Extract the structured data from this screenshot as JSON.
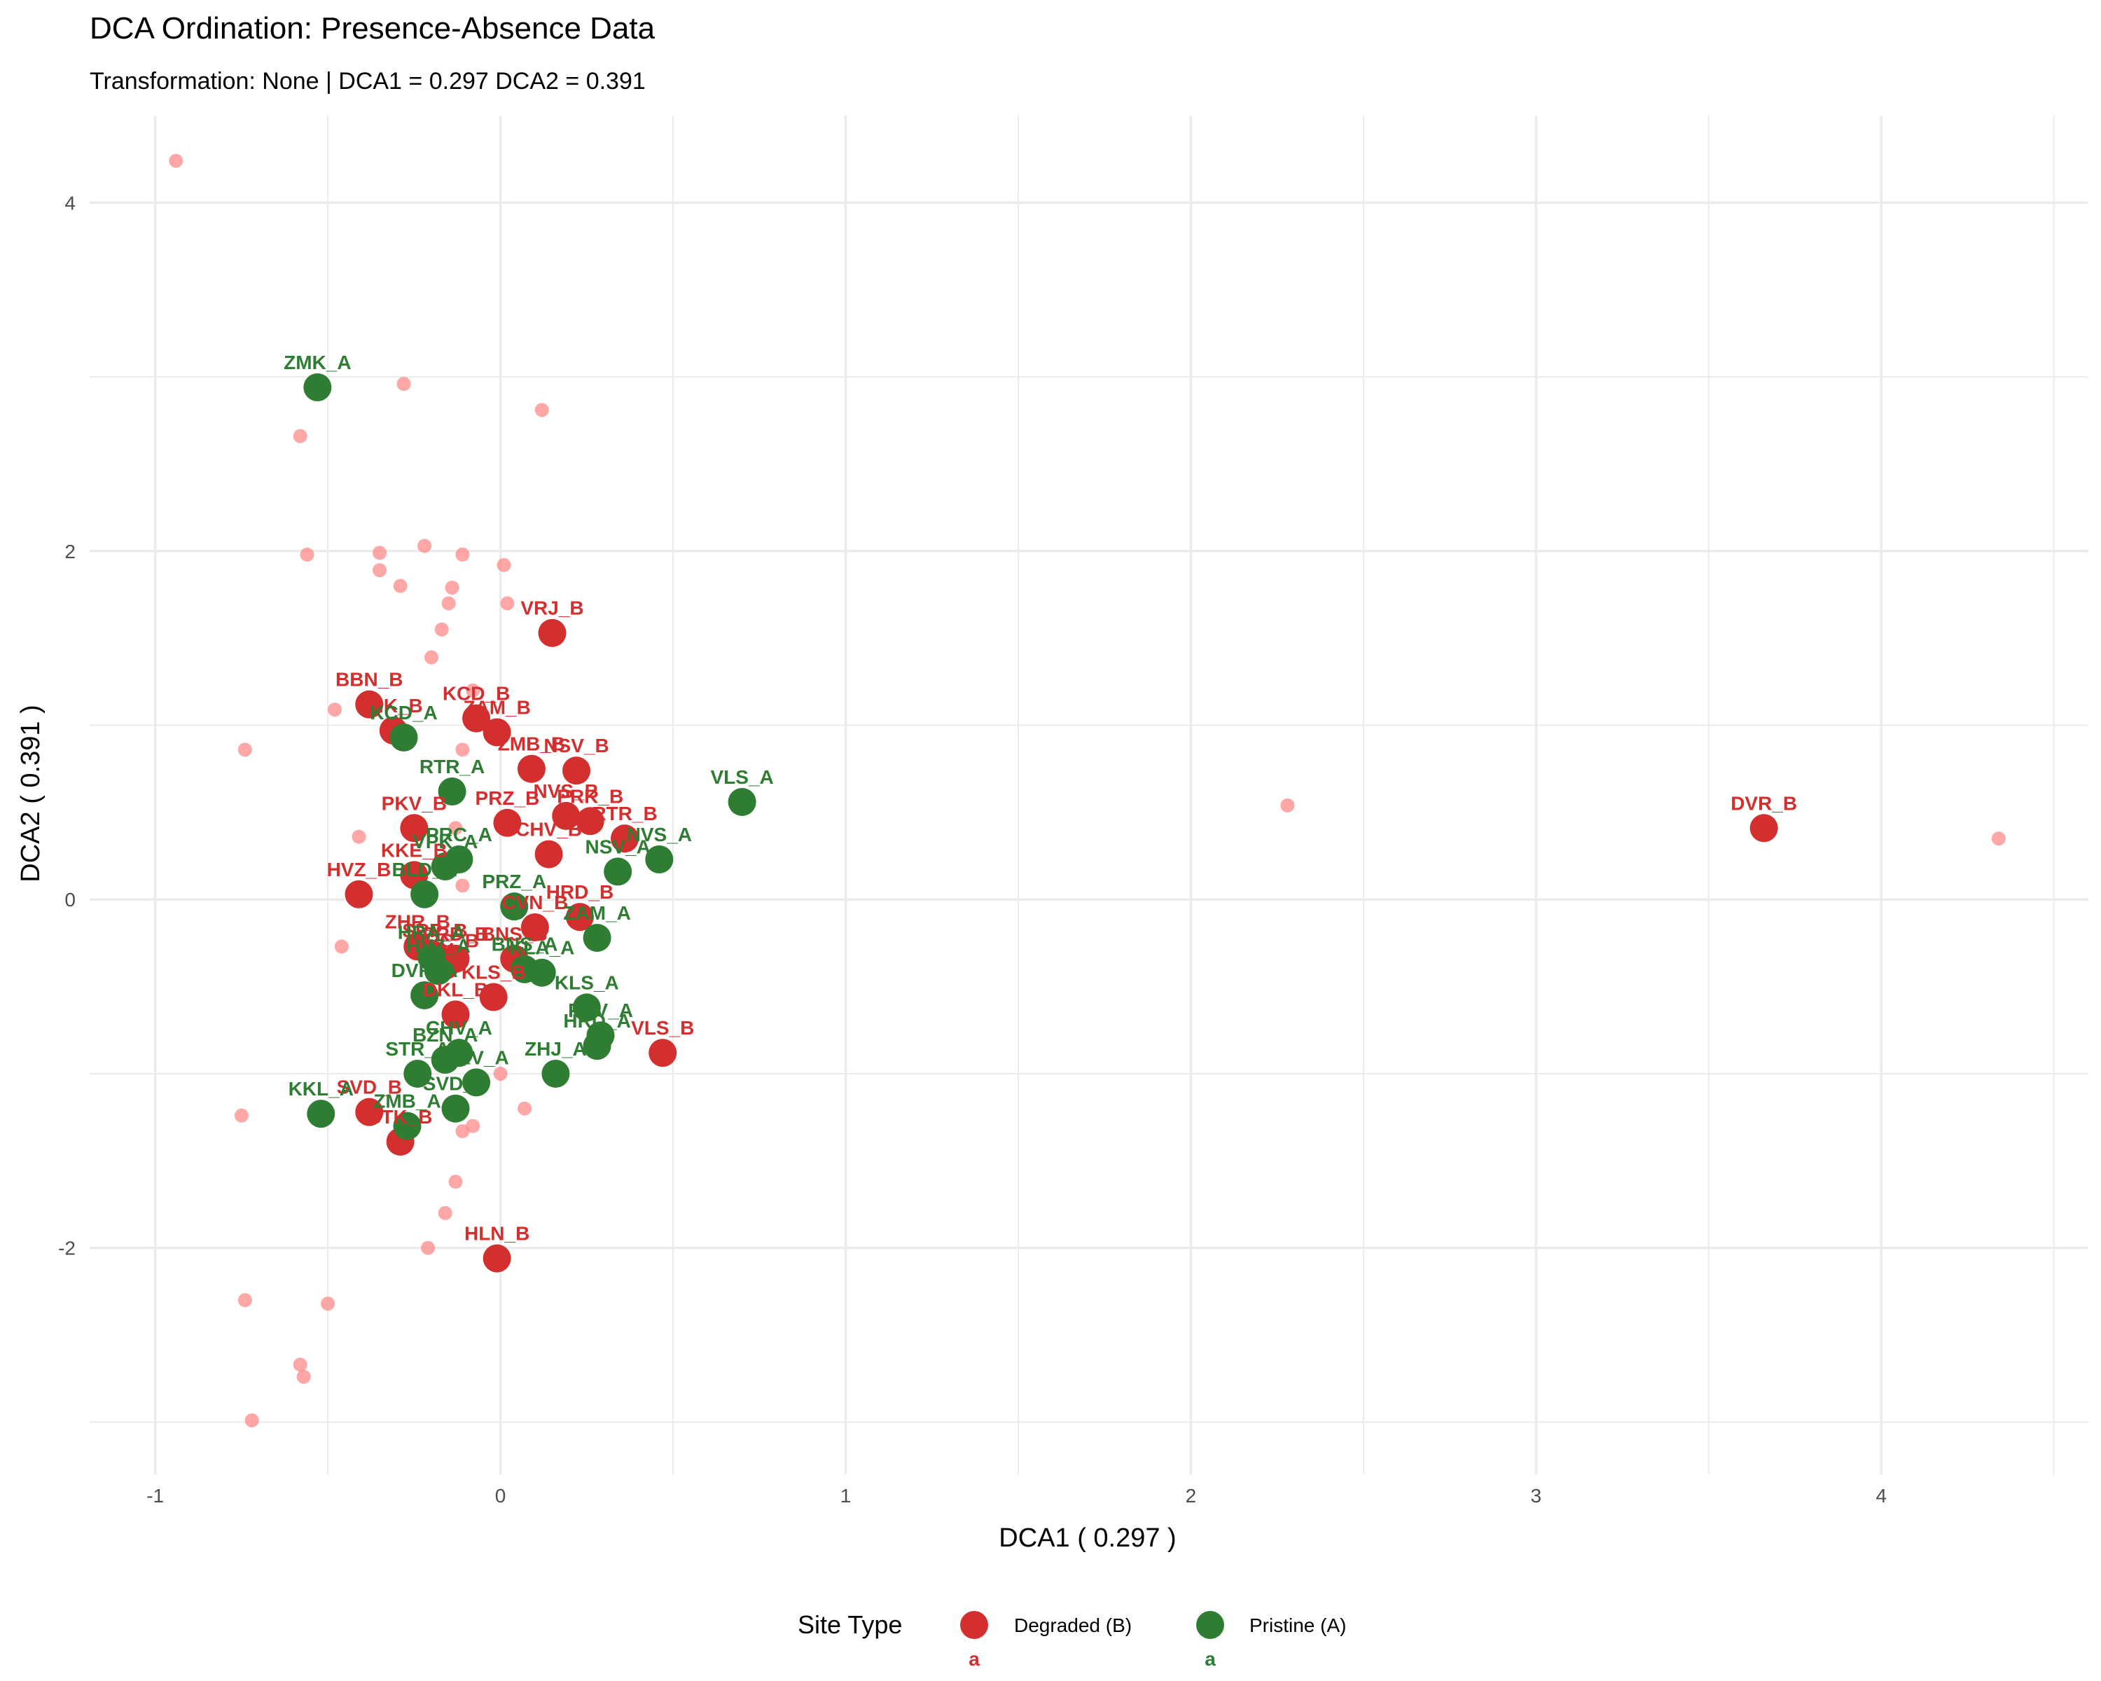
{
  "chart_data": {
    "type": "scatter",
    "title": "DCA Ordination: Presence-Absence Data",
    "subtitle": "Transformation: None | DCA1 = 0.297 DCA2 = 0.391",
    "xlabel": "DCA1 ( 0.297 )",
    "ylabel": "DCA2 ( 0.391 )",
    "xlim": [
      -1.19,
      4.6
    ],
    "ylim": [
      -3.3,
      4.5
    ],
    "x_ticks": [
      -1,
      0,
      1,
      2,
      3,
      4
    ],
    "y_ticks": [
      -2,
      0,
      2,
      4
    ],
    "x_tick_labels": [
      "-1",
      "0",
      "1",
      "2",
      "3",
      "4"
    ],
    "y_tick_labels": [
      "-2",
      "0",
      "2",
      "4"
    ],
    "grid": true,
    "legend": {
      "title": "Site Type",
      "position": "bottom",
      "entries": [
        {
          "label": "Degraded (B)",
          "color": "#d32f2f",
          "key_letter": "a"
        },
        {
          "label": "Pristine (A)",
          "color": "#2e7d32",
          "key_letter": "a"
        }
      ]
    },
    "series": [
      {
        "name": "Degraded (B)",
        "color": "#d32f2f",
        "points": [
          {
            "label": "VRJ_B",
            "x": 0.15,
            "y": 1.53
          },
          {
            "label": "BBN_B",
            "x": -0.38,
            "y": 1.12
          },
          {
            "label": "NIK_B",
            "x": -0.31,
            "y": 0.97
          },
          {
            "label": "KCD_B",
            "x": -0.07,
            "y": 1.04
          },
          {
            "label": "ZAM_B",
            "x": -0.01,
            "y": 0.96
          },
          {
            "label": "ZMB_B",
            "x": 0.09,
            "y": 0.75
          },
          {
            "label": "NSV_B",
            "x": 0.22,
            "y": 0.74
          },
          {
            "label": "PKV_B",
            "x": -0.25,
            "y": 0.41
          },
          {
            "label": "PRZ_B",
            "x": 0.02,
            "y": 0.44
          },
          {
            "label": "NVS_B",
            "x": 0.19,
            "y": 0.48
          },
          {
            "label": "PRK_B",
            "x": 0.26,
            "y": 0.45
          },
          {
            "label": "RTR_B",
            "x": 0.36,
            "y": 0.35
          },
          {
            "label": "CHV_B",
            "x": 0.14,
            "y": 0.26
          },
          {
            "label": "KKE_B",
            "x": -0.25,
            "y": 0.14
          },
          {
            "label": "HVZ_B",
            "x": -0.41,
            "y": 0.03
          },
          {
            "label": "HRD_B",
            "x": 0.23,
            "y": -0.1
          },
          {
            "label": "CVN_B",
            "x": 0.1,
            "y": -0.16
          },
          {
            "label": "ZHR_B",
            "x": -0.24,
            "y": -0.27
          },
          {
            "label": "SRP_B",
            "x": -0.19,
            "y": -0.32
          },
          {
            "label": "PRD_B",
            "x": -0.13,
            "y": -0.34
          },
          {
            "label": "HRC_B",
            "x": -0.16,
            "y": -0.38
          },
          {
            "label": "BNS_B",
            "x": 0.04,
            "y": -0.34
          },
          {
            "label": "KLS_B",
            "x": -0.02,
            "y": -0.56
          },
          {
            "label": "DKL_B",
            "x": -0.13,
            "y": -0.66
          },
          {
            "label": "VLS_B",
            "x": 0.47,
            "y": -0.88
          },
          {
            "label": "SVD_B",
            "x": -0.38,
            "y": -1.22
          },
          {
            "label": "STK_B",
            "x": -0.29,
            "y": -1.39
          },
          {
            "label": "HLN_B",
            "x": -0.01,
            "y": -2.06
          },
          {
            "label": "DVR_B",
            "x": 3.66,
            "y": 0.41
          }
        ]
      },
      {
        "name": "Pristine (A)",
        "color": "#2e7d32",
        "points": [
          {
            "label": "ZMK_A",
            "x": -0.53,
            "y": 2.94
          },
          {
            "label": "KCD_A",
            "x": -0.28,
            "y": 0.93
          },
          {
            "label": "RTR_A",
            "x": -0.14,
            "y": 0.62
          },
          {
            "label": "VLS_A",
            "x": 0.7,
            "y": 0.56
          },
          {
            "label": "PRC_A",
            "x": -0.12,
            "y": 0.23
          },
          {
            "label": "VPK_A",
            "x": -0.16,
            "y": 0.19
          },
          {
            "label": "NSV_A",
            "x": 0.34,
            "y": 0.16
          },
          {
            "label": "NVS_A",
            "x": 0.46,
            "y": 0.23
          },
          {
            "label": "BLD_A",
            "x": -0.22,
            "y": 0.03
          },
          {
            "label": "PRZ_A",
            "x": 0.04,
            "y": -0.04
          },
          {
            "label": "ZAM_A",
            "x": 0.28,
            "y": -0.22
          },
          {
            "label": "HRA_A",
            "x": -0.2,
            "y": -0.33
          },
          {
            "label": "HVZ_A",
            "x": -0.18,
            "y": -0.41
          },
          {
            "label": "BNS_A",
            "x": 0.07,
            "y": -0.4
          },
          {
            "label": "KLA_A",
            "x": 0.12,
            "y": -0.42
          },
          {
            "label": "DVR_A",
            "x": -0.22,
            "y": -0.55
          },
          {
            "label": "KLS_A",
            "x": 0.25,
            "y": -0.62
          },
          {
            "label": "PRV_A",
            "x": 0.29,
            "y": -0.78
          },
          {
            "label": "HRD_A",
            "x": 0.28,
            "y": -0.84
          },
          {
            "label": "CHV_A",
            "x": -0.12,
            "y": -0.88
          },
          {
            "label": "BZN_A",
            "x": -0.16,
            "y": -0.92
          },
          {
            "label": "STR_A",
            "x": -0.24,
            "y": -1.0
          },
          {
            "label": "ZHJ_A",
            "x": 0.16,
            "y": -1.0
          },
          {
            "label": "PKV_A",
            "x": -0.07,
            "y": -1.05
          },
          {
            "label": "SVD_A",
            "x": -0.13,
            "y": -1.2
          },
          {
            "label": "KKL_A",
            "x": -0.52,
            "y": -1.23
          },
          {
            "label": "ZMB_A",
            "x": -0.27,
            "y": -1.3
          }
        ]
      },
      {
        "name": "",
        "color": "#ff8a8a",
        "points": [
          {
            "x": -0.94,
            "y": 4.24
          },
          {
            "x": -0.28,
            "y": 2.96
          },
          {
            "x": 0.12,
            "y": 2.81
          },
          {
            "x": -0.58,
            "y": 2.66
          },
          {
            "x": -0.56,
            "y": 1.98
          },
          {
            "x": -0.35,
            "y": 1.99
          },
          {
            "x": -0.22,
            "y": 2.03
          },
          {
            "x": -0.11,
            "y": 1.98
          },
          {
            "x": -0.35,
            "y": 1.89
          },
          {
            "x": -0.29,
            "y": 1.8
          },
          {
            "x": 0.01,
            "y": 1.92
          },
          {
            "x": -0.14,
            "y": 1.79
          },
          {
            "x": -0.15,
            "y": 1.7
          },
          {
            "x": 0.02,
            "y": 1.7
          },
          {
            "x": -0.17,
            "y": 1.55
          },
          {
            "x": -0.2,
            "y": 1.39
          },
          {
            "x": -0.08,
            "y": 1.2
          },
          {
            "x": -0.48,
            "y": 1.09
          },
          {
            "x": -0.74,
            "y": 0.86
          },
          {
            "x": -0.11,
            "y": 0.86
          },
          {
            "x": -0.41,
            "y": 0.36
          },
          {
            "x": -0.13,
            "y": 0.41
          },
          {
            "x": -0.11,
            "y": 0.08
          },
          {
            "x": -0.46,
            "y": -0.27
          },
          {
            "x": 0.0,
            "y": -1.0
          },
          {
            "x": 0.07,
            "y": -1.2
          },
          {
            "x": -0.75,
            "y": -1.24
          },
          {
            "x": -0.08,
            "y": -1.3
          },
          {
            "x": -0.11,
            "y": -1.33
          },
          {
            "x": -0.13,
            "y": -1.62
          },
          {
            "x": -0.16,
            "y": -1.8
          },
          {
            "x": -0.21,
            "y": -2.0
          },
          {
            "x": -0.74,
            "y": -2.3
          },
          {
            "x": -0.5,
            "y": -2.32
          },
          {
            "x": -0.58,
            "y": -2.67
          },
          {
            "x": -0.57,
            "y": -2.74
          },
          {
            "x": -0.72,
            "y": -2.99
          },
          {
            "x": 2.28,
            "y": 0.54
          },
          {
            "x": 4.34,
            "y": 0.35
          }
        ]
      }
    ]
  }
}
